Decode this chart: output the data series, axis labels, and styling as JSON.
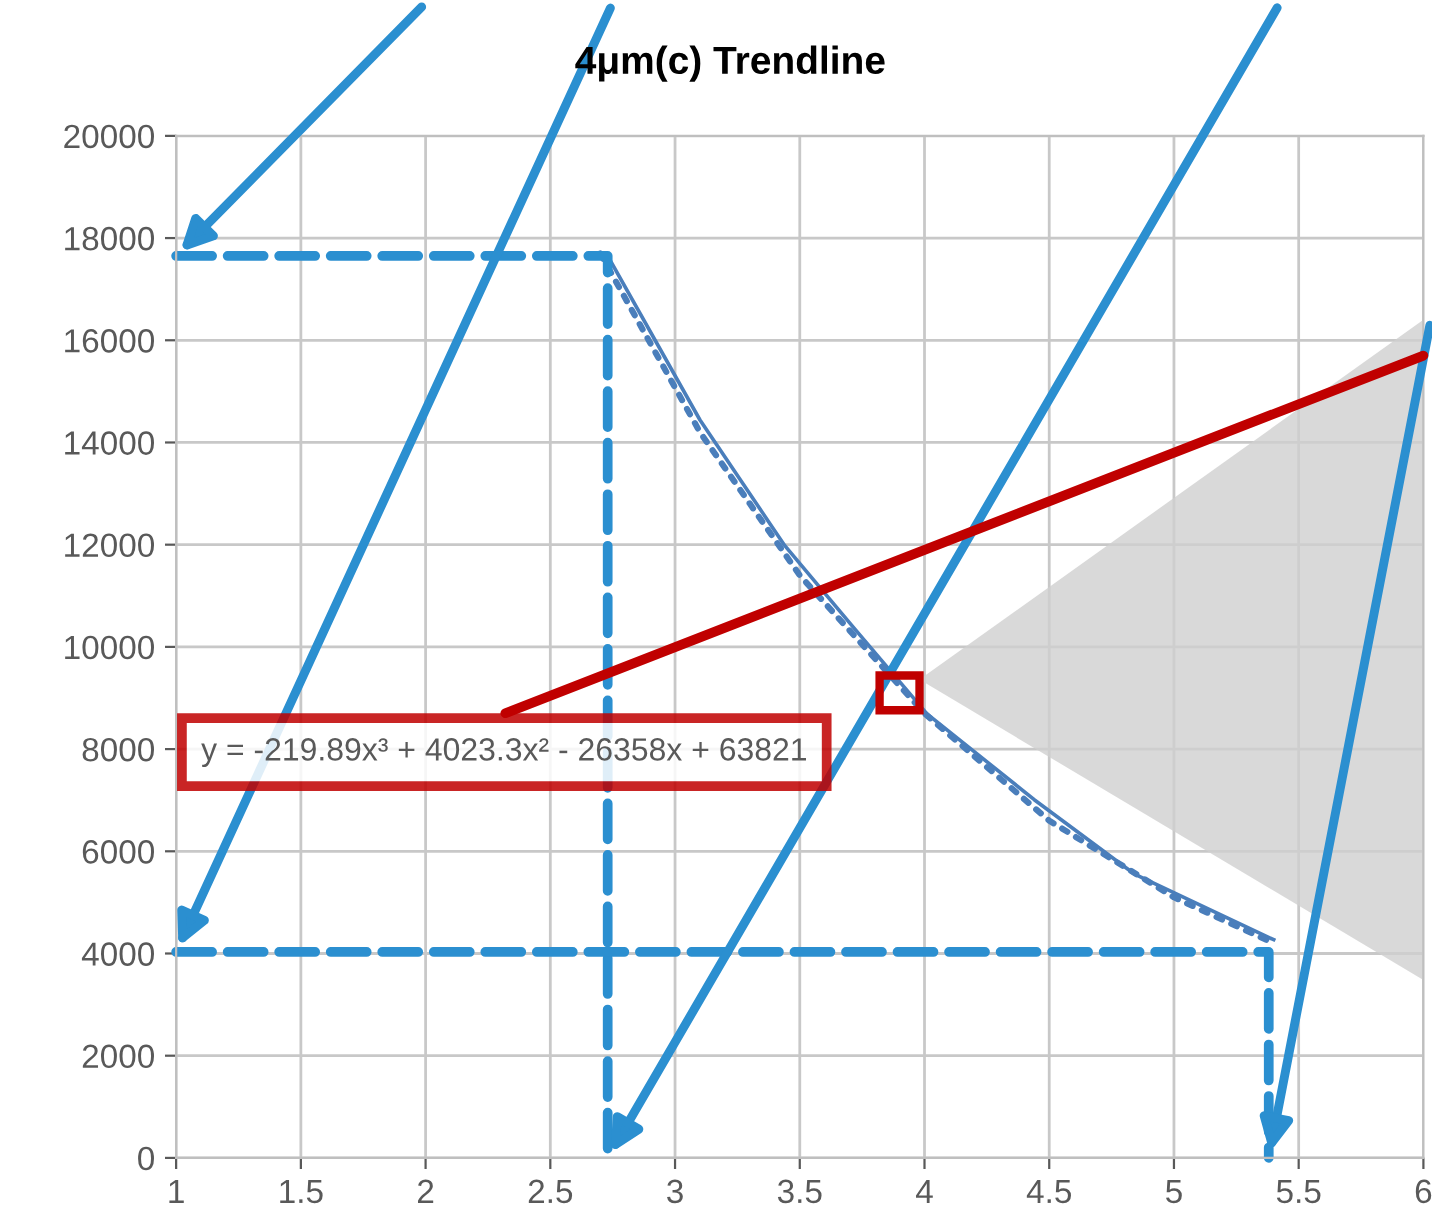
{
  "chart_data": {
    "type": "line",
    "title": "4μm(c) Trendline",
    "series": [
      {
        "color": "#4a7ebb",
        "line_style": "solid",
        "x": [
          2.73,
          3.1,
          3.44,
          3.71,
          4.01,
          4.44,
          4.84,
          5.4
        ],
        "values": [
          17650,
          14440,
          11980,
          10410,
          8690,
          7010,
          5560,
          4270
        ]
      },
      {
        "color": "#4a7ebb",
        "line_style": "dotted",
        "x": [
          2.7,
          3.1,
          3.5,
          4,
          4.5,
          5,
          5.4
        ],
        "values": [
          17700,
          14200,
          11400,
          8700,
          6600,
          5100,
          4200
        ]
      },
      {
        "color": "#2b8fd0",
        "line_style": "dashed",
        "x": [
          1,
          2.73,
          2.73
        ],
        "values": [
          17650,
          17650,
          0
        ]
      },
      {
        "color": "#2b8fd0",
        "line_style": "dashed",
        "x": [
          1,
          5.38,
          5.38
        ],
        "values": [
          4030,
          4030,
          0
        ]
      }
    ],
    "xlim": [
      1,
      6
    ],
    "xticks": [
      1,
      1.5,
      2,
      2.5,
      3,
      3.5,
      4,
      4.5,
      5,
      5.5,
      6
    ],
    "ylim": [
      0,
      20000
    ],
    "yticks": [
      0,
      2000,
      4000,
      6000,
      8000,
      10000,
      12000,
      14000,
      16000,
      18000,
      20000
    ],
    "grid": true,
    "legend": false,
    "marker": "none",
    "annotations": [
      "y = -219.89x³ + 4023.3x² - 26358x + 63821"
    ]
  }
}
